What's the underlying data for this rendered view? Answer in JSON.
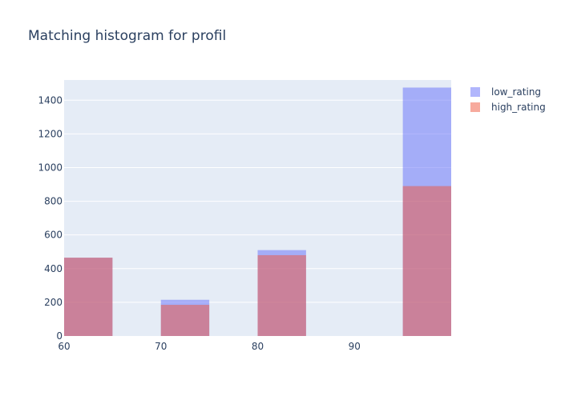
{
  "chart_data": {
    "type": "bar",
    "title": "Matching histogram for profil",
    "xlabel": "",
    "ylabel": "",
    "x_range": [
      60,
      100
    ],
    "ylim": [
      0,
      1520
    ],
    "bin_width": 5,
    "x_ticks": [
      60,
      70,
      80,
      90
    ],
    "y_ticks": [
      0,
      200,
      400,
      600,
      800,
      1000,
      1200,
      1400
    ],
    "grid": true,
    "legend_position": "top-right",
    "series": [
      {
        "name": "low_rating",
        "color": "#636efa",
        "bins": [
          {
            "x0": 60,
            "x1": 65,
            "value": 465
          },
          {
            "x0": 70,
            "x1": 75,
            "value": 215
          },
          {
            "x0": 80,
            "x1": 85,
            "value": 510
          },
          {
            "x0": 95,
            "x1": 100,
            "value": 1475
          }
        ]
      },
      {
        "name": "high_rating",
        "color": "#ef553b",
        "bins": [
          {
            "x0": 60,
            "x1": 65,
            "value": 465
          },
          {
            "x0": 70,
            "x1": 75,
            "value": 185
          },
          {
            "x0": 80,
            "x1": 85,
            "value": 480
          },
          {
            "x0": 95,
            "x1": 100,
            "value": 890
          }
        ]
      }
    ]
  }
}
